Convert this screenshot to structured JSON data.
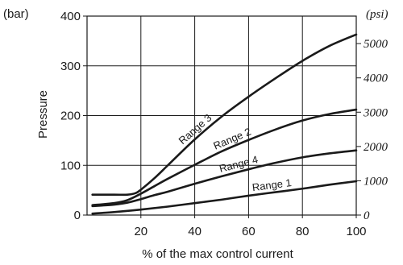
{
  "chart_data": {
    "type": "line",
    "xlabel": "% of the max control current",
    "ylabel": "Pressure",
    "ylabel_unit_left": "(bar)",
    "ylabel_unit_right": "(psi)",
    "xlim": [
      0,
      100
    ],
    "ylim": [
      0,
      400
    ],
    "x_ticks": [
      20,
      40,
      60,
      80,
      100
    ],
    "y_ticks_left": [
      0,
      100,
      200,
      300,
      400
    ],
    "y_ticks_right": [
      0,
      1000,
      2000,
      3000,
      4000,
      5000
    ],
    "psi_per_bar": 14.5038,
    "grid": true,
    "series": [
      {
        "name": "Range 3",
        "x": [
          2,
          10,
          15,
          18,
          20,
          25,
          30,
          40,
          50,
          60,
          70,
          80,
          90,
          100
        ],
        "y": [
          41,
          41,
          41,
          44,
          51,
          74,
          100,
          152,
          198,
          238,
          275,
          310,
          340,
          363
        ]
      },
      {
        "name": "Range 2",
        "x": [
          2,
          10,
          15,
          20,
          25,
          30,
          40,
          50,
          60,
          70,
          80,
          90,
          100
        ],
        "y": [
          20,
          24,
          30,
          43,
          58,
          73,
          101,
          128,
          151,
          172,
          190,
          203,
          212
        ]
      },
      {
        "name": "Range 4",
        "x": [
          2,
          10,
          15,
          20,
          25,
          30,
          40,
          50,
          60,
          70,
          80,
          90,
          100
        ],
        "y": [
          18,
          21,
          25,
          32,
          40,
          47,
          63,
          78,
          92,
          105,
          116,
          124,
          130
        ]
      },
      {
        "name": "Range 1",
        "x": [
          2,
          10,
          20,
          30,
          40,
          50,
          60,
          70,
          80,
          90,
          100
        ],
        "y": [
          3,
          6,
          11,
          17,
          24,
          31,
          39,
          46,
          53,
          61,
          68
        ]
      }
    ]
  }
}
